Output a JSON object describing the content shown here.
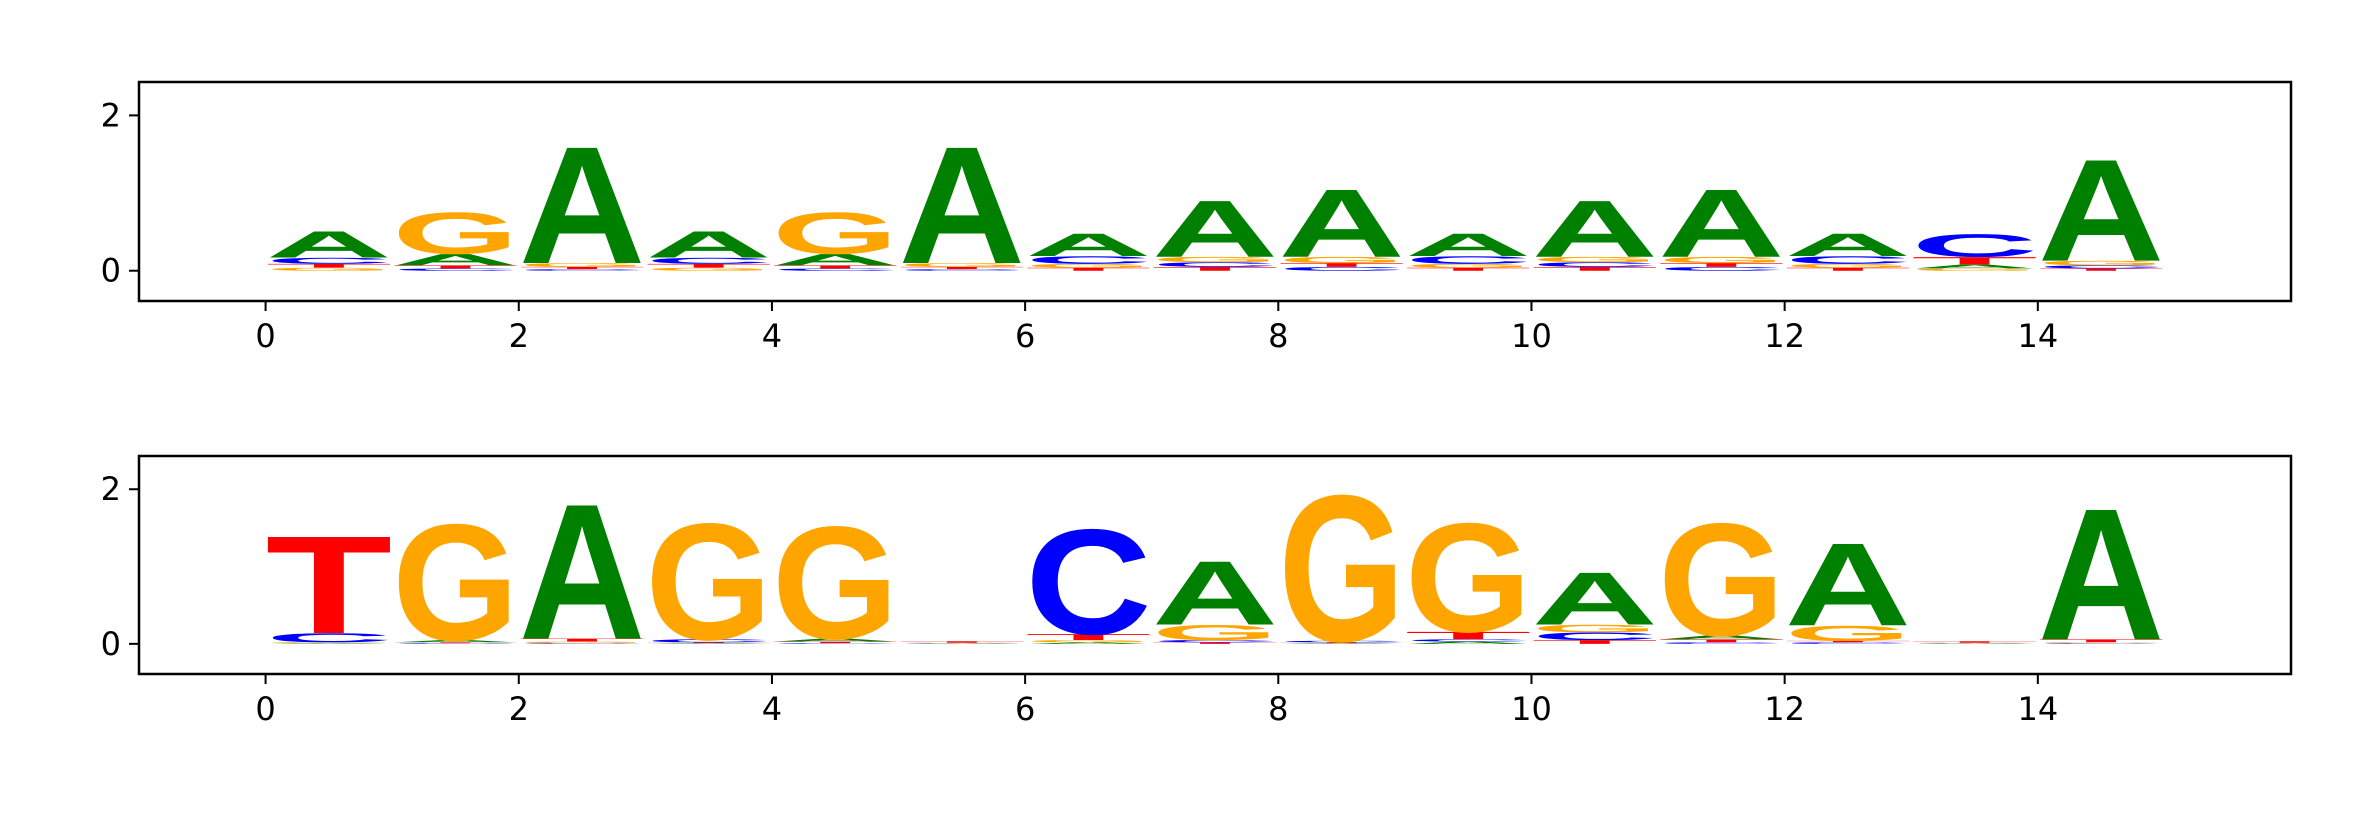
{
  "chart_data": [
    {
      "type": "logo",
      "x": [
        0,
        1,
        2,
        3,
        4,
        5,
        6,
        7,
        8,
        9,
        10,
        11,
        12,
        13,
        14
      ],
      "series": [
        {
          "name": "A",
          "color": "#008000",
          "values": [
            0.35,
            0.15,
            1.55,
            0.35,
            0.15,
            1.55,
            0.3,
            0.75,
            0.9,
            0.3,
            0.75,
            0.9,
            0.3,
            0.05,
            1.35
          ]
        },
        {
          "name": "C",
          "color": "#0000ff",
          "values": [
            0.08,
            0.03,
            0.02,
            0.08,
            0.03,
            0.02,
            0.1,
            0.06,
            0.05,
            0.1,
            0.06,
            0.05,
            0.1,
            0.3,
            0.04
          ]
        },
        {
          "name": "G",
          "color": "#ffa500",
          "values": [
            0.04,
            0.55,
            0.05,
            0.04,
            0.55,
            0.05,
            0.05,
            0.07,
            0.08,
            0.05,
            0.07,
            0.08,
            0.05,
            0.03,
            0.06
          ]
        },
        {
          "name": "T",
          "color": "#ff0000",
          "values": [
            0.05,
            0.04,
            0.03,
            0.05,
            0.04,
            0.03,
            0.04,
            0.05,
            0.05,
            0.04,
            0.05,
            0.05,
            0.04,
            0.1,
            0.03
          ]
        }
      ],
      "xlim": [
        -1,
        16
      ],
      "xticks": [
        0,
        2,
        4,
        6,
        8,
        10,
        12,
        14
      ],
      "ylim": [
        -0.39,
        2.43
      ],
      "yticks": [
        0,
        2
      ]
    },
    {
      "type": "logo",
      "x": [
        0,
        1,
        2,
        3,
        4,
        5,
        6,
        7,
        8,
        9,
        10,
        11,
        12,
        13,
        14
      ],
      "series": [
        {
          "name": "A",
          "color": "#008000",
          "values": [
            0.01,
            0.03,
            1.8,
            0.01,
            0.04,
            0.005,
            0.02,
            0.85,
            0.01,
            0.03,
            0.7,
            0.05,
            1.1,
            0.005,
            1.75
          ]
        },
        {
          "name": "C",
          "color": "#0000ff",
          "values": [
            0.12,
            0.01,
            0.01,
            0.04,
            0.01,
            0.005,
            1.4,
            0.03,
            0.02,
            0.03,
            0.1,
            0.02,
            0.02,
            0.005,
            0.01
          ]
        },
        {
          "name": "G",
          "color": "#ffa500",
          "values": [
            0.01,
            1.55,
            0.02,
            1.55,
            1.5,
            0.005,
            0.03,
            0.2,
            1.95,
            1.45,
            0.1,
            1.5,
            0.2,
            0.005,
            0.01
          ]
        },
        {
          "name": "T",
          "color": "#ff0000",
          "values": [
            1.3,
            0.01,
            0.04,
            0.01,
            0.02,
            0.02,
            0.08,
            0.02,
            0.01,
            0.1,
            0.05,
            0.04,
            0.02,
            0.02,
            0.04
          ]
        }
      ],
      "xlim": [
        -1,
        16
      ],
      "xticks": [
        0,
        2,
        4,
        6,
        8,
        10,
        12,
        14
      ],
      "ylim": [
        -0.39,
        2.43
      ],
      "yticks": [
        0,
        2
      ]
    }
  ]
}
